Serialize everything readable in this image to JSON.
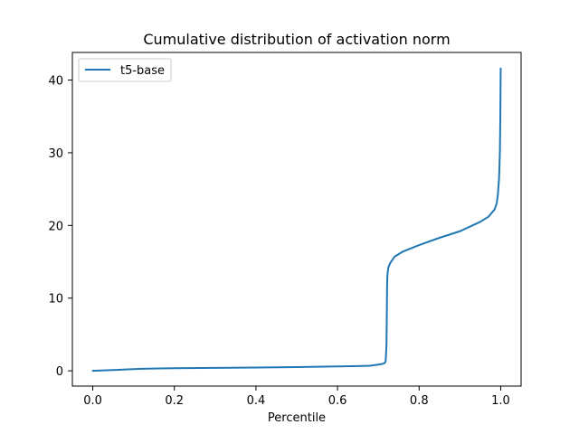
{
  "chart_data": {
    "type": "line",
    "title": "Cumulative distribution of activation norm",
    "xlabel": "Percentile",
    "ylabel": "",
    "xlim": [
      -0.05,
      1.05
    ],
    "ylim": [
      -2.1,
      43.8
    ],
    "xticks": [
      0.0,
      0.2,
      0.4,
      0.6,
      0.8,
      1.0
    ],
    "xtick_labels": [
      "0.0",
      "0.2",
      "0.4",
      "0.6",
      "0.8",
      "1.0"
    ],
    "yticks": [
      0,
      10,
      20,
      30,
      40
    ],
    "ytick_labels": [
      "0",
      "10",
      "20",
      "30",
      "40"
    ],
    "grid": false,
    "legend": {
      "position": "upper left",
      "entries": [
        "t5-base"
      ]
    },
    "series": [
      {
        "name": "t5-base",
        "color": "#1f77b4",
        "x": [
          0.0,
          0.02,
          0.05,
          0.08,
          0.12,
          0.16,
          0.2,
          0.3,
          0.4,
          0.5,
          0.6,
          0.65,
          0.68,
          0.7,
          0.71,
          0.715,
          0.718,
          0.72,
          0.721,
          0.7215,
          0.722,
          0.723,
          0.725,
          0.73,
          0.74,
          0.76,
          0.8,
          0.85,
          0.9,
          0.95,
          0.97,
          0.985,
          0.99,
          0.993,
          0.996,
          0.998,
          0.999,
          1.0
        ],
        "y": [
          0.0,
          0.05,
          0.1,
          0.18,
          0.28,
          0.32,
          0.35,
          0.4,
          0.45,
          0.52,
          0.6,
          0.65,
          0.7,
          0.85,
          0.95,
          1.05,
          1.3,
          3.5,
          8.5,
          11.5,
          12.8,
          13.6,
          14.3,
          14.9,
          15.7,
          16.4,
          17.3,
          18.3,
          19.2,
          20.5,
          21.2,
          22.2,
          23.0,
          24.2,
          26.5,
          30.0,
          34.5,
          41.6
        ]
      }
    ]
  }
}
